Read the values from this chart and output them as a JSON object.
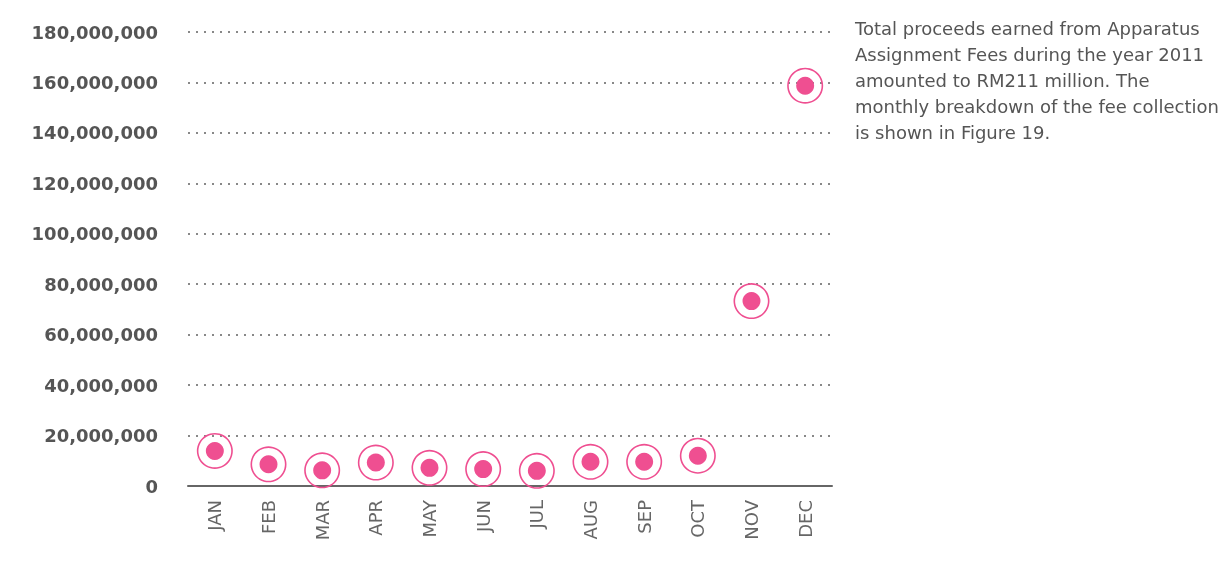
{
  "chart_data": {
    "type": "scatter",
    "categories": [
      "JAN",
      "FEB",
      "MAR",
      "APR",
      "MAY",
      "JUN",
      "JUL",
      "AUG",
      "SEP",
      "OCT",
      "NOV",
      "DEC"
    ],
    "values": [
      13900000,
      8600000,
      6200000,
      9300000,
      7200000,
      6700000,
      6000000,
      9600000,
      9600000,
      12000000,
      73300000,
      158700000
    ],
    "color": "#ef4f91",
    "marker": "circle",
    "grid": "y",
    "ylim": [
      0,
      180000000
    ],
    "yticks": [
      0,
      {
        "value": 20000000,
        "label": "20,000,000"
      },
      {
        "value": 40000000,
        "label": "40,000,000"
      },
      {
        "value": 60000000,
        "label": "60,000,000"
      },
      {
        "value": 80000000,
        "label": "80,000,000"
      },
      {
        "value": 100000000,
        "label": "100,000,000"
      },
      {
        "value": 120000000,
        "label": "120,000,000"
      },
      {
        "value": 140000000,
        "label": "140,000,000"
      },
      {
        "value": 160000000,
        "label": "160,000,000"
      },
      {
        "value": 180000000,
        "label": "180,000,000"
      }
    ],
    "annotations": [
      "Total proceeds earned from Apparatus Assignment Fees during the year 2011 amounted to RM211 million. The monthly breakdown of the fee collection is shown in Figure 19."
    ]
  }
}
